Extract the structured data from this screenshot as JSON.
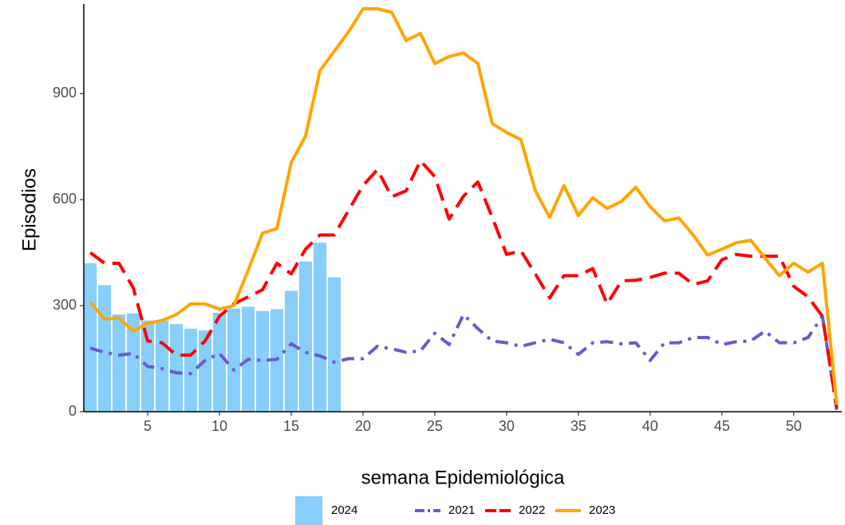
{
  "chart_data": {
    "type": "combo",
    "x_label": "semana Epidemiológica",
    "y_label": "Episodios",
    "x": [
      1,
      2,
      3,
      4,
      5,
      6,
      7,
      8,
      9,
      10,
      11,
      12,
      13,
      14,
      15,
      16,
      17,
      18,
      19,
      20,
      21,
      22,
      23,
      24,
      25,
      26,
      27,
      28,
      29,
      30,
      31,
      32,
      33,
      34,
      35,
      36,
      37,
      38,
      39,
      40,
      41,
      42,
      43,
      44,
      45,
      46,
      47,
      48,
      49,
      50,
      51,
      52,
      53
    ],
    "xlim": [
      0.55,
      53.35
    ],
    "xticks": [
      5,
      10,
      15,
      20,
      25,
      30,
      35,
      40,
      45,
      50
    ],
    "ylim": [
      0,
      1140
    ],
    "yticks": [
      0,
      300,
      600,
      900
    ],
    "grid": false,
    "legend": "bottom",
    "series": [
      {
        "name": "2024",
        "type": "bar",
        "color": "#87cefa",
        "values": [
          420,
          358,
          275,
          278,
          258,
          258,
          248,
          235,
          230,
          280,
          292,
          297,
          285,
          290,
          342,
          425,
          478,
          380,
          null,
          null,
          null,
          null,
          null,
          null,
          null,
          null,
          null,
          null,
          null,
          null,
          null,
          null,
          null,
          null,
          null,
          null,
          null,
          null,
          null,
          null,
          null,
          null,
          null,
          null,
          null,
          null,
          null,
          null,
          null,
          null,
          null,
          null,
          null
        ]
      },
      {
        "name": "2021",
        "type": "line",
        "linetype": "dashdot",
        "color": "#6a5acd",
        "values": [
          180,
          168,
          160,
          165,
          128,
          122,
          110,
          108,
          145,
          165,
          118,
          148,
          145,
          148,
          192,
          168,
          158,
          140,
          150,
          150,
          185,
          178,
          168,
          172,
          222,
          190,
          275,
          235,
          200,
          195,
          185,
          195,
          205,
          195,
          162,
          195,
          198,
          192,
          195,
          145,
          195,
          195,
          210,
          210,
          190,
          198,
          200,
          228,
          195,
          195,
          210,
          270,
          5
        ]
      },
      {
        "name": "2022",
        "type": "line",
        "linetype": "dashed",
        "color": "#ff0000",
        "values": [
          450,
          420,
          420,
          350,
          200,
          195,
          160,
          160,
          200,
          270,
          305,
          325,
          345,
          420,
          390,
          460,
          500,
          500,
          570,
          640,
          685,
          608,
          625,
          710,
          665,
          545,
          610,
          650,
          550,
          445,
          455,
          390,
          322,
          385,
          385,
          405,
          305,
          370,
          372,
          380,
          392,
          392,
          360,
          370,
          430,
          445,
          440,
          440,
          440,
          355,
          325,
          270,
          10
        ]
      },
      {
        "name": "2023",
        "type": "line",
        "linetype": "solid",
        "color": "#ffa500",
        "values": [
          310,
          262,
          265,
          228,
          250,
          258,
          275,
          305,
          305,
          290,
          300,
          400,
          505,
          518,
          705,
          780,
          965,
          1020,
          1075,
          1140,
          1140,
          1130,
          1050,
          1070,
          985,
          1005,
          1015,
          985,
          815,
          790,
          770,
          625,
          550,
          640,
          555,
          605,
          575,
          595,
          635,
          580,
          540,
          548,
          500,
          443,
          460,
          478,
          485,
          435,
          385,
          420,
          395,
          420,
          20
        ]
      }
    ]
  }
}
